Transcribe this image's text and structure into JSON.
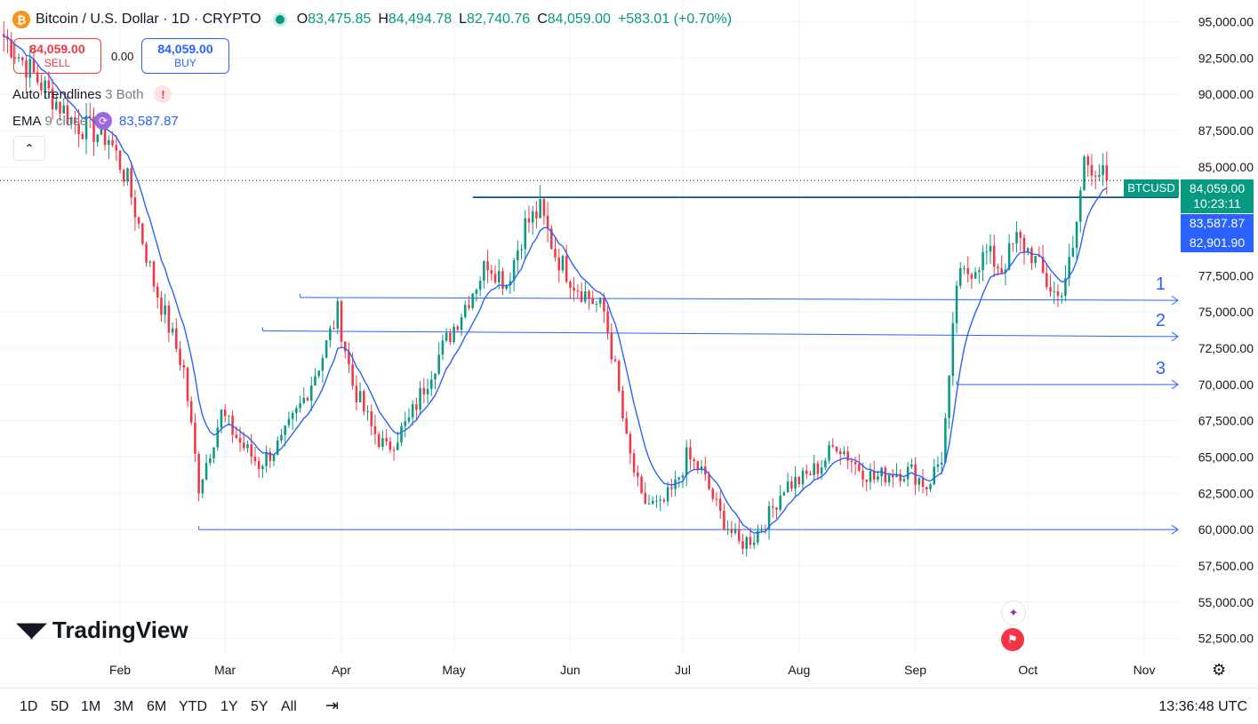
{
  "header": {
    "coin_glyph": "₿",
    "symbol_text": "Bitcoin / U.S. Dollar · 1D · CRYPTO",
    "ohlc": {
      "o_label": "O",
      "o": "83,475.85",
      "h_label": "H",
      "h": "84,494.78",
      "l_label": "L",
      "l": "82,740.76",
      "c_label": "C",
      "c": "84,059.00",
      "change": "+583.01 (+0.70%)"
    }
  },
  "trade": {
    "sell_price": "84,059.00",
    "sell_label": "SELL",
    "spread": "0.00",
    "buy_price": "84,059.00",
    "buy_label": "BUY"
  },
  "indicators": {
    "trendlines_name": "Auto trendlines",
    "trendlines_params": "3 Both",
    "warning_glyph": "!",
    "ema_name": "EMA",
    "ema_params": "9 close",
    "ema_value": "83,587.87",
    "collapse_glyph": "⌃"
  },
  "logo_text": "TradingView",
  "level_labels": [
    "1",
    "2",
    "3"
  ],
  "price_tags": {
    "symbol": "BTCUSD",
    "last": "84,059.00",
    "countdown": "10:23:11",
    "ema": "83,587.87",
    "level": "82,901.90"
  },
  "colors": {
    "up": "#089981",
    "down": "#f23645",
    "ema": "#2962ff",
    "trendline": "#2962ff",
    "level": "#0b5394"
  },
  "bottom_bar": {
    "ranges": [
      "1D",
      "5D",
      "1M",
      "3M",
      "6M",
      "YTD",
      "1Y",
      "5Y",
      "All"
    ],
    "clock": "13:36:48 UTC",
    "compare_icon": "calendar-range-icon",
    "settings_icon": "gear-icon"
  },
  "chart_data": {
    "type": "candlestick",
    "y_axis_ticks": [
      "95,000.00",
      "92,500.00",
      "90,000.00",
      "87,500.00",
      "85,000.00",
      "77,500.00",
      "75,000.00",
      "72,500.00",
      "70,000.00",
      "67,500.00",
      "65,000.00",
      "62,500.00",
      "60,000.00",
      "57,500.00",
      "55,000.00",
      "52,500.00"
    ],
    "y_tick_values": [
      95000,
      92500,
      90000,
      87500,
      85000,
      77500,
      75000,
      72500,
      70000,
      67500,
      65000,
      62500,
      60000,
      57500,
      55000,
      52500
    ],
    "x_axis_ticks": [
      "Feb",
      "Mar",
      "Apr",
      "May",
      "Jun",
      "Jul",
      "Aug",
      "Sep",
      "Oct",
      "Nov"
    ],
    "ylim": [
      51500,
      96500
    ],
    "period_start": "2024-12-31",
    "period_end": "2025-11-10",
    "key_points": [
      {
        "date": "2025-01-01",
        "close": 94000
      },
      {
        "date": "2025-01-10",
        "close": 91000
      },
      {
        "date": "2025-01-20",
        "close": 88000
      },
      {
        "date": "2025-01-29",
        "close": 87000
      },
      {
        "date": "2025-02-03",
        "close": 84000
      },
      {
        "date": "2025-02-10",
        "close": 77000
      },
      {
        "date": "2025-02-18",
        "close": 71000
      },
      {
        "date": "2025-02-22",
        "close": 63000
      },
      {
        "date": "2025-02-28",
        "close": 68000
      },
      {
        "date": "2025-03-05",
        "close": 66000
      },
      {
        "date": "2025-03-10",
        "close": 64500
      },
      {
        "date": "2025-03-16",
        "close": 66000
      },
      {
        "date": "2025-03-22",
        "close": 69000
      },
      {
        "date": "2025-03-27",
        "close": 72000
      },
      {
        "date": "2025-03-31",
        "close": 75000
      },
      {
        "date": "2025-04-04",
        "close": 70000
      },
      {
        "date": "2025-04-09",
        "close": 67000
      },
      {
        "date": "2025-04-13",
        "close": 65500
      },
      {
        "date": "2025-04-19",
        "close": 67500
      },
      {
        "date": "2025-04-25",
        "close": 71000
      },
      {
        "date": "2025-05-01",
        "close": 74000
      },
      {
        "date": "2025-05-06",
        "close": 76500
      },
      {
        "date": "2025-05-10",
        "close": 78500
      },
      {
        "date": "2025-05-15",
        "close": 77000
      },
      {
        "date": "2025-05-20",
        "close": 81000
      },
      {
        "date": "2025-05-24",
        "close": 82000
      },
      {
        "date": "2025-05-28",
        "close": 79000
      },
      {
        "date": "2025-06-02",
        "close": 77000
      },
      {
        "date": "2025-06-06",
        "close": 76000
      },
      {
        "date": "2025-06-10",
        "close": 75000
      },
      {
        "date": "2025-06-13",
        "close": 71000
      },
      {
        "date": "2025-06-16",
        "close": 66000
      },
      {
        "date": "2025-06-20",
        "close": 62000
      },
      {
        "date": "2025-06-25",
        "close": 61500
      },
      {
        "date": "2025-06-29",
        "close": 63000
      },
      {
        "date": "2025-07-02",
        "close": 65000
      },
      {
        "date": "2025-07-06",
        "close": 64000
      },
      {
        "date": "2025-07-11",
        "close": 61000
      },
      {
        "date": "2025-07-16",
        "close": 59000
      },
      {
        "date": "2025-07-20",
        "close": 59500
      },
      {
        "date": "2025-07-24",
        "close": 61000
      },
      {
        "date": "2025-07-28",
        "close": 63000
      },
      {
        "date": "2025-08-02",
        "close": 63500
      },
      {
        "date": "2025-08-07",
        "close": 64500
      },
      {
        "date": "2025-08-11",
        "close": 66000
      },
      {
        "date": "2025-08-16",
        "close": 64500
      },
      {
        "date": "2025-08-21",
        "close": 63500
      },
      {
        "date": "2025-08-26",
        "close": 64000
      },
      {
        "date": "2025-08-31",
        "close": 64000
      },
      {
        "date": "2025-09-04",
        "close": 63000
      },
      {
        "date": "2025-09-08",
        "close": 65000
      },
      {
        "date": "2025-09-10",
        "close": 70000
      },
      {
        "date": "2025-09-12",
        "close": 77000
      },
      {
        "date": "2025-09-16",
        "close": 78000
      },
      {
        "date": "2025-09-20",
        "close": 79000
      },
      {
        "date": "2025-09-24",
        "close": 78000
      },
      {
        "date": "2025-09-28",
        "close": 80000
      },
      {
        "date": "2025-10-02",
        "close": 79000
      },
      {
        "date": "2025-10-06",
        "close": 77000
      },
      {
        "date": "2025-10-09",
        "close": 76000
      },
      {
        "date": "2025-10-13",
        "close": 79000
      },
      {
        "date": "2025-10-16",
        "close": 85500
      },
      {
        "date": "2025-10-19",
        "close": 85000
      },
      {
        "date": "2025-10-22",
        "close": 84000
      }
    ],
    "ema_period": 9,
    "trendlines": [
      {
        "label": "1",
        "from": {
          "date": "2025-03-21",
          "price": 76000
        },
        "to": {
          "date": "2025-11-10",
          "price": 75800
        }
      },
      {
        "label": "2",
        "from": {
          "date": "2025-03-11",
          "price": 73700
        },
        "to": {
          "date": "2025-11-10",
          "price": 73300
        }
      },
      {
        "label": "3",
        "from": {
          "date": "2025-09-12",
          "price": 70000
        },
        "to": {
          "date": "2025-11-10",
          "price": 70000
        }
      },
      {
        "label": "",
        "from": {
          "date": "2025-02-22",
          "price": 60000
        },
        "to": {
          "date": "2025-11-10",
          "price": 60000
        }
      }
    ],
    "horizontal_levels": [
      {
        "from_date": "2025-05-06",
        "price": 82901.9
      }
    ],
    "last_price": 84059.0
  }
}
